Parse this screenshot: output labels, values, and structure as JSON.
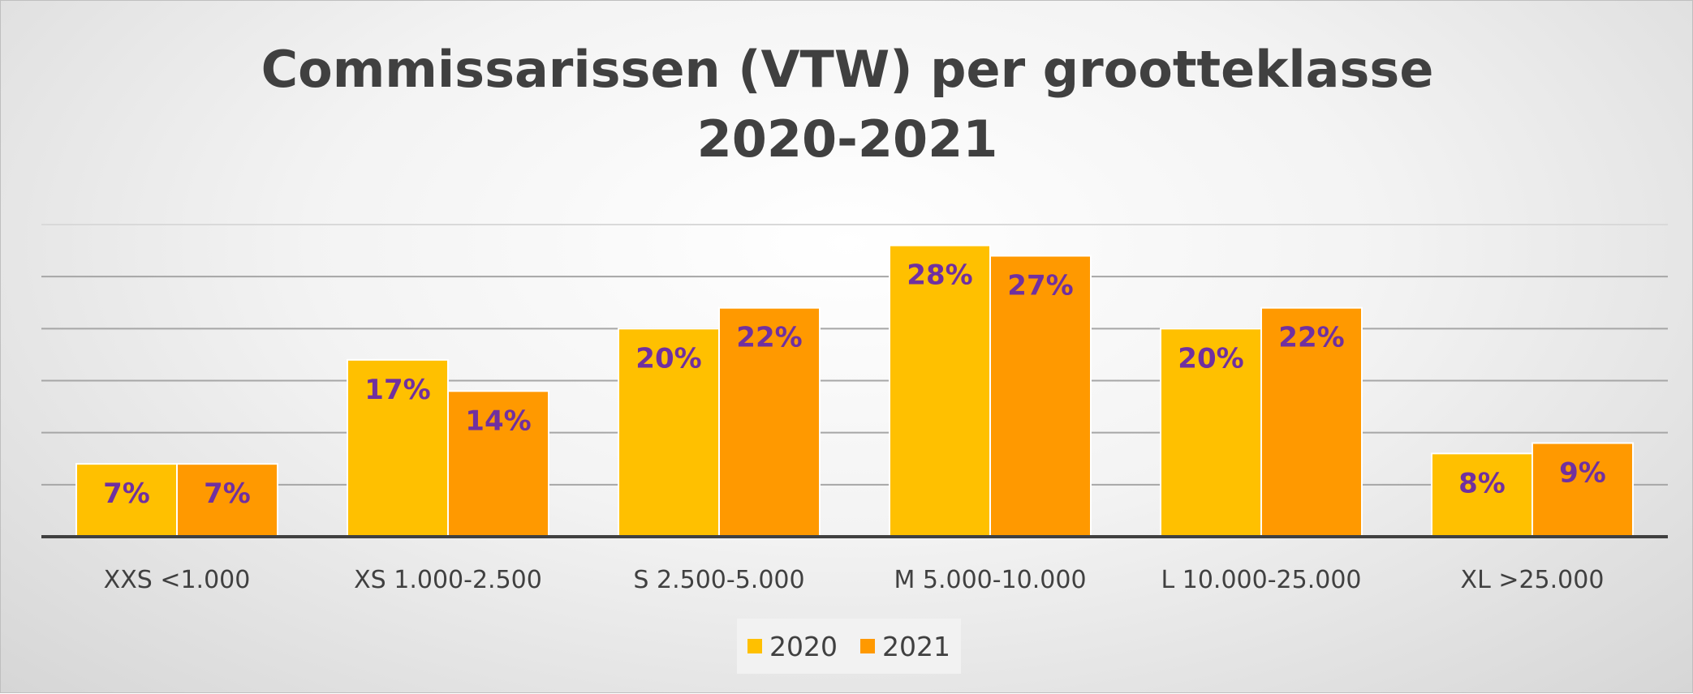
{
  "chart_data": {
    "type": "bar",
    "title": "Commissarissen (VTW) per grootteklasse 2020-2021",
    "title_lines": [
      "Commissarissen (VTW) per grootteklasse",
      "2020-2021"
    ],
    "categories": [
      "XXS <1.000",
      "XS 1.000-2.500",
      "S 2.500-5.000",
      "M 5.000-10.000",
      "L 10.000-25.000",
      "XL >25.000"
    ],
    "series": [
      {
        "name": "2020",
        "values": [
          7,
          17,
          20,
          28,
          20,
          8
        ],
        "labels": [
          "7%",
          "17%",
          "20%",
          "28%",
          "20%",
          "8%"
        ],
        "color": "#FFC000"
      },
      {
        "name": "2021",
        "values": [
          7,
          14,
          22,
          27,
          22,
          9
        ],
        "labels": [
          "7%",
          "14%",
          "22%",
          "27%",
          "22%",
          "9%"
        ],
        "color": "#FF9900"
      }
    ],
    "ylim": [
      0,
      30
    ],
    "grid": true,
    "legend_position": "bottom",
    "data_label_color": "#7030A0",
    "xlabel": "",
    "ylabel": ""
  }
}
